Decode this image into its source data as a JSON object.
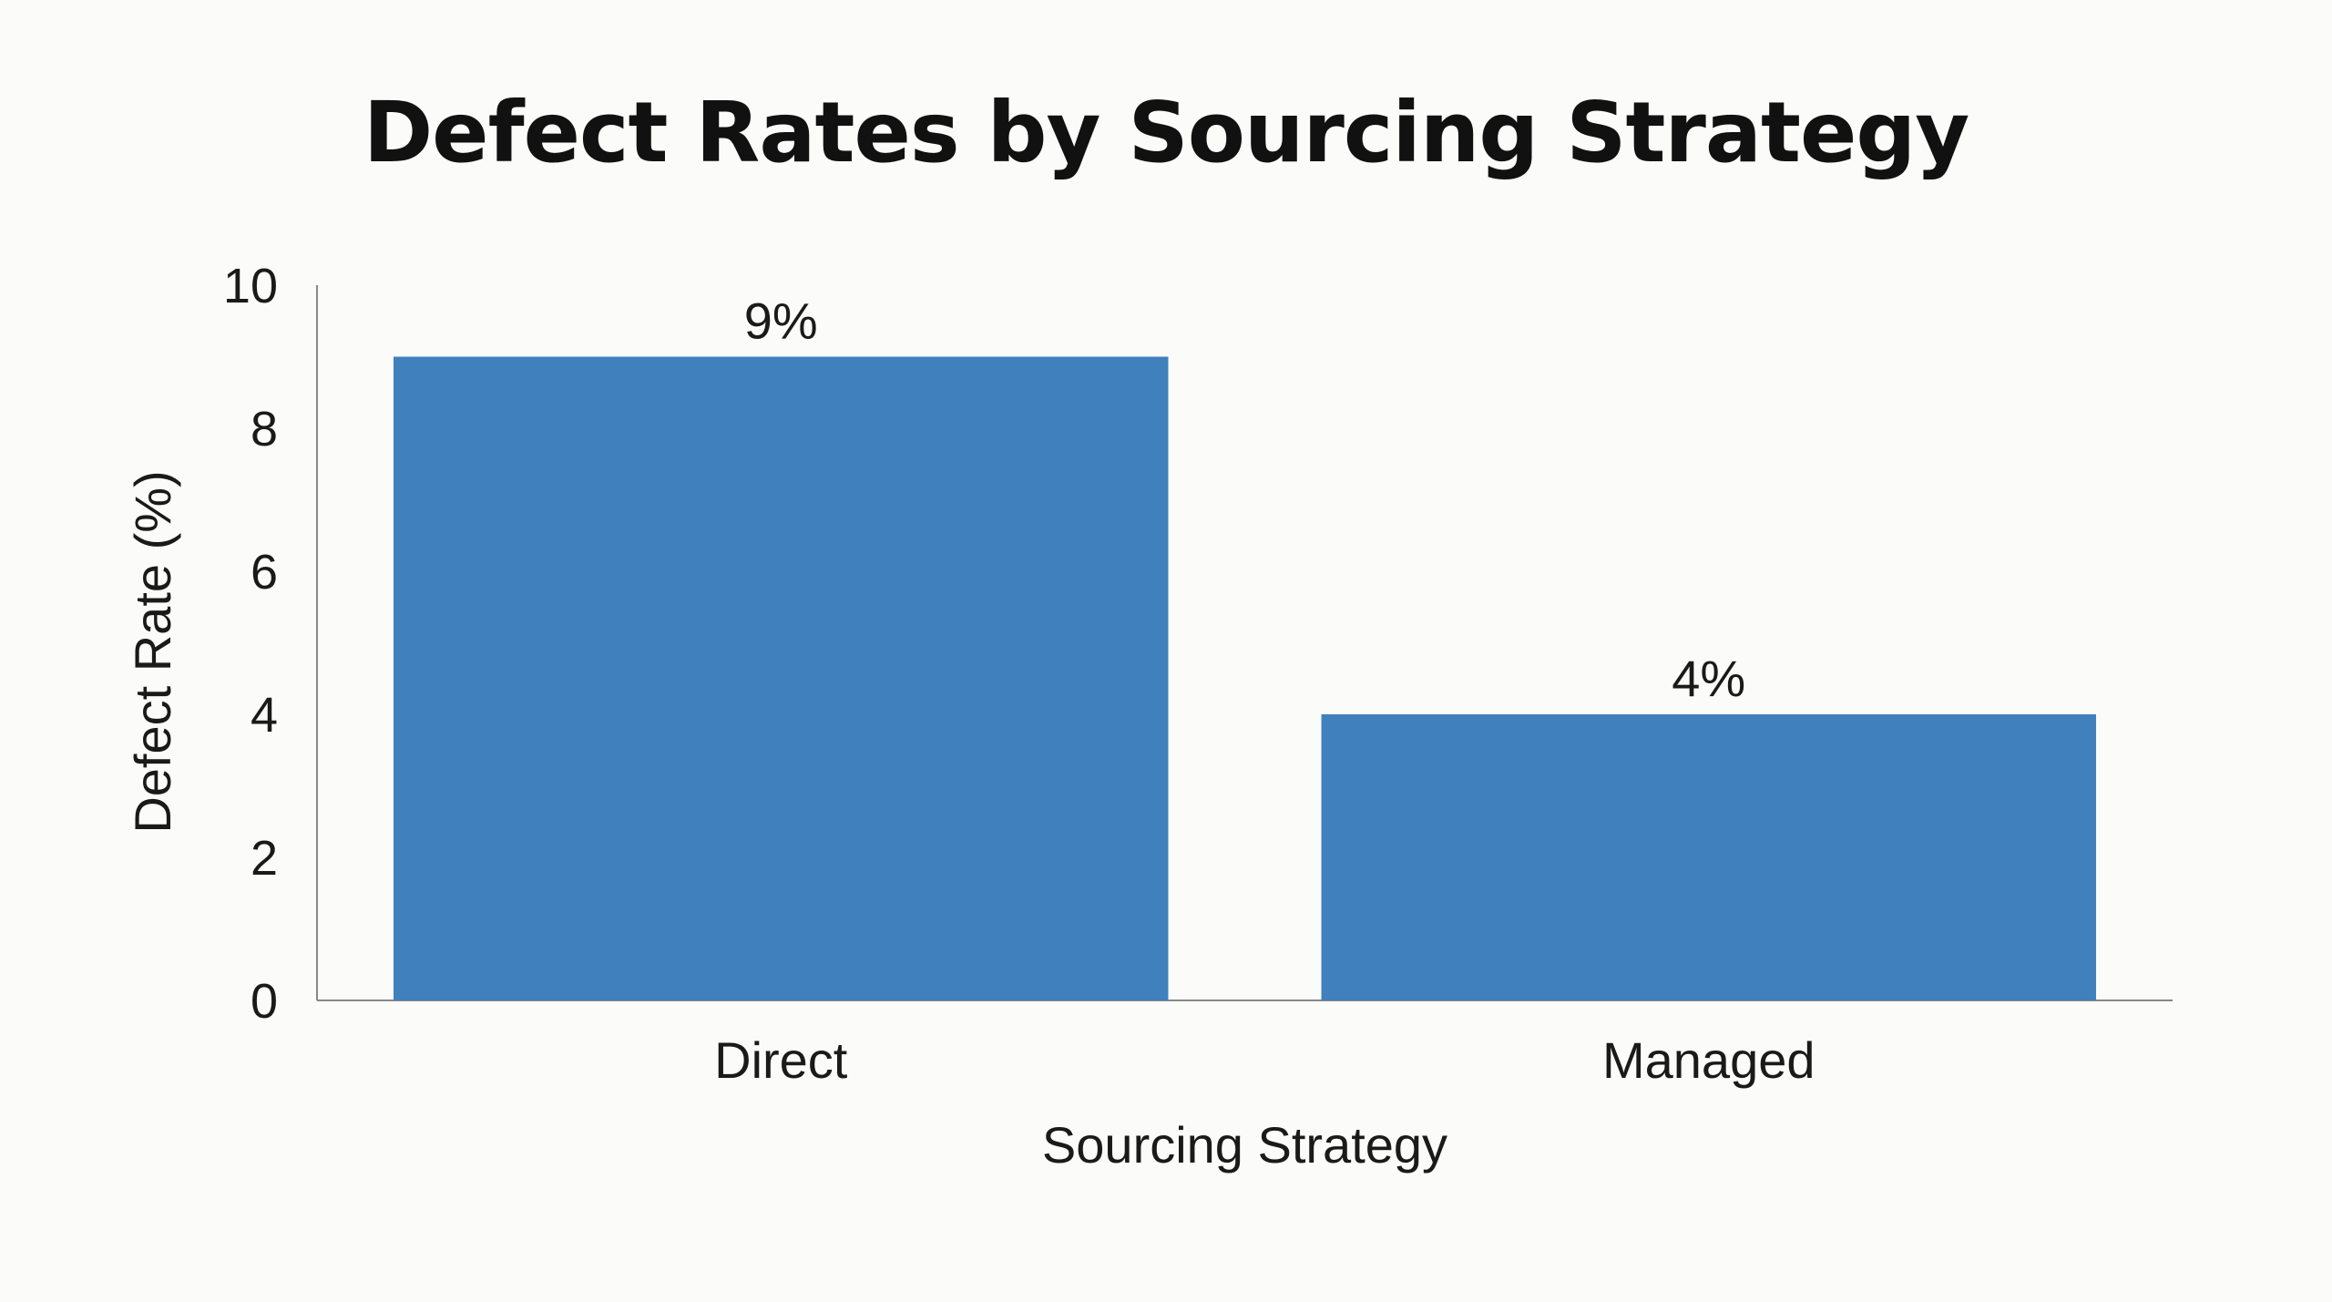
{
  "chart_data": {
    "type": "bar",
    "title": "Defect Rates by Sourcing Strategy",
    "xlabel": "Sourcing Strategy",
    "ylabel": "Defect Rate (%)",
    "categories": [
      "Direct",
      "Managed"
    ],
    "values": [
      9,
      4
    ],
    "data_labels": [
      "9%",
      "4%"
    ],
    "ylim": [
      0,
      10
    ],
    "yticks": [
      0,
      2,
      4,
      6,
      8,
      10
    ],
    "grid": false,
    "legend": "none",
    "bar_color": "#4080bc"
  }
}
